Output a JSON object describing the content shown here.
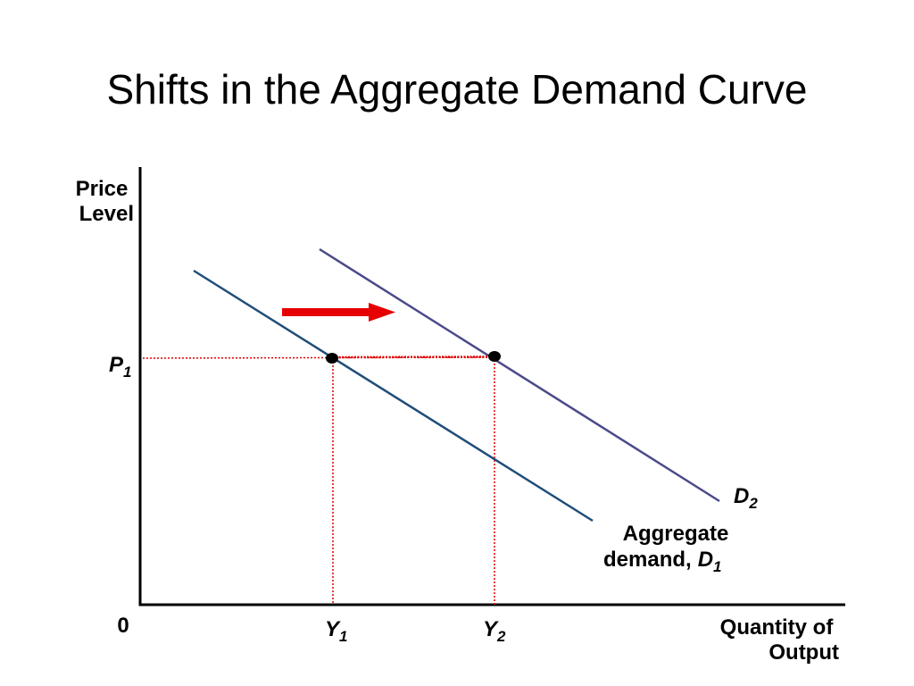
{
  "title": "Shifts in the Aggregate Demand Curve",
  "y_axis_label": [
    "Price",
    "Level"
  ],
  "x_axis_label": [
    "Quantity of",
    "Output"
  ],
  "origin_label": "0",
  "price_label": {
    "symbol": "P",
    "sub": "1"
  },
  "quantity_labels": [
    {
      "symbol": "Y",
      "sub": "1"
    },
    {
      "symbol": "Y",
      "sub": "2"
    }
  ],
  "d2_label": {
    "symbol": "D",
    "sub": "2"
  },
  "d1_label": {
    "line1": "Aggregate",
    "line2": "demand,",
    "symbol": "D",
    "sub": "1"
  }
}
